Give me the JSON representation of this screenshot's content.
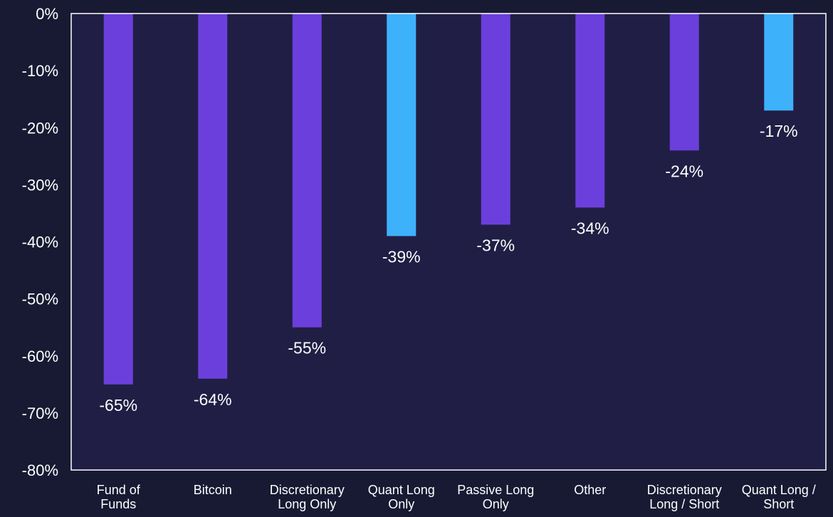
{
  "chart_data": {
    "type": "bar",
    "categories": [
      [
        "Fund of",
        "Funds"
      ],
      [
        "Bitcoin"
      ],
      [
        "Discretionary",
        "Long Only"
      ],
      [
        "Quant Long",
        "Only"
      ],
      [
        "Passive Long",
        "Only"
      ],
      [
        "Other"
      ],
      [
        "Discretionary",
        "Long / Short"
      ],
      [
        "Quant Long /",
        "Short"
      ]
    ],
    "values": [
      -65,
      -64,
      -55,
      -39,
      -37,
      -34,
      -24,
      -17
    ],
    "data_labels": [
      "-65%",
      "-64%",
      "-55%",
      "-39%",
      "-37%",
      "-34%",
      "-24%",
      "-17%"
    ],
    "bar_colors": [
      "#6b3fdb",
      "#6b3fdb",
      "#6b3fdb",
      "#3eb1fb",
      "#6b3fdb",
      "#6b3fdb",
      "#6b3fdb",
      "#3eb1fb"
    ],
    "ylim": [
      -80,
      0
    ],
    "yticks": [
      0,
      -10,
      -20,
      -30,
      -40,
      -50,
      -60,
      -70,
      -80
    ],
    "ytick_labels": [
      "0%",
      "-10%",
      "-20%",
      "-30%",
      "-40%",
      "-50%",
      "-60%",
      "-70%",
      "-80%"
    ],
    "title": "",
    "xlabel": "",
    "ylabel": "",
    "grid": false,
    "legend": "none",
    "colors": {
      "background": "#181a33",
      "plot_background": "#211e45",
      "axis": "#ffffff",
      "text": "#ffffff"
    }
  }
}
